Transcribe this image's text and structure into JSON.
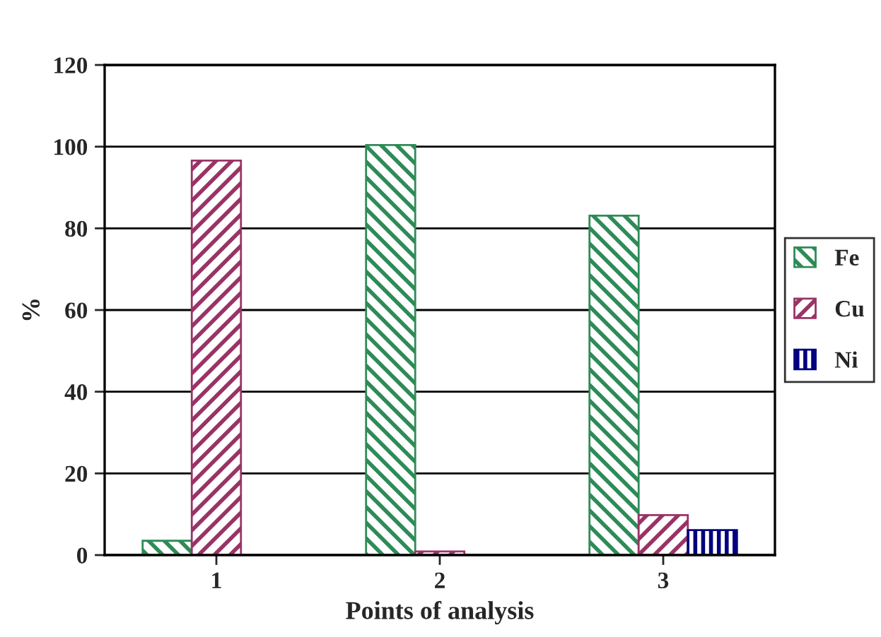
{
  "chart_data": {
    "type": "bar",
    "xlabel": "Points of analysis",
    "ylabel": "%",
    "categories": [
      "1",
      "2",
      "3"
    ],
    "series": [
      {
        "name": "Fe",
        "color": "#2e8b57",
        "values": [
          3.5,
          100.4,
          83.1
        ]
      },
      {
        "name": "Cu",
        "color": "#993366",
        "values": [
          96.6,
          0.9,
          9.8
        ]
      },
      {
        "name": "Ni",
        "color": "#000080",
        "values": [
          null,
          null,
          6.1
        ]
      }
    ],
    "ylim": [
      0,
      120
    ],
    "yticks": [
      0,
      20,
      40,
      60,
      80,
      100,
      120
    ],
    "grid": "y",
    "legend": "right"
  }
}
